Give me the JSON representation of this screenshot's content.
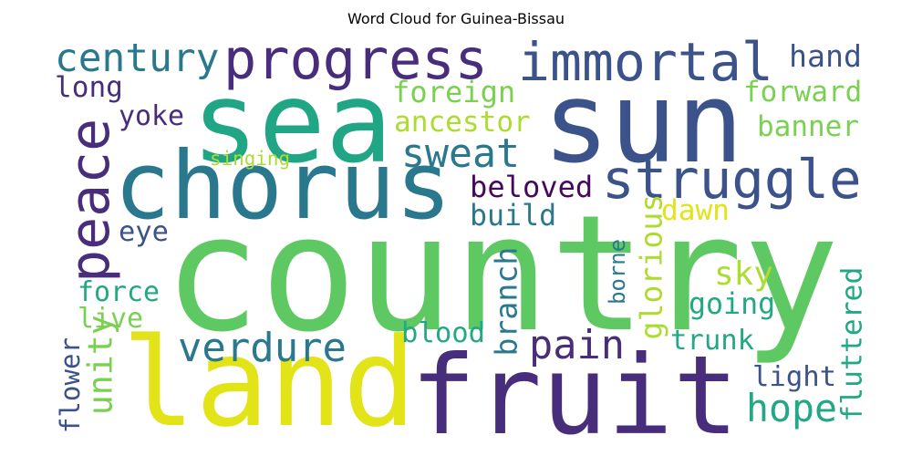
{
  "title": "Word Cloud for Guinea-Bissau",
  "colors": {
    "green": "#5ec962",
    "teal_green": "#21a685",
    "teal": "#2a788e",
    "blue": "#3b528b",
    "purple": "#472d7b",
    "dark_purple": "#46085c",
    "yellow": "#e2e418",
    "lime": "#addc30",
    "light_green": "#7ad151",
    "aqua": "#22a884"
  },
  "words": [
    {
      "text": "country",
      "color": "green"
    },
    {
      "text": "land",
      "color": "yellow"
    },
    {
      "text": "fruit",
      "color": "purple"
    },
    {
      "text": "sea",
      "color": "teal_green"
    },
    {
      "text": "sun",
      "color": "blue"
    },
    {
      "text": "chorus",
      "color": "teal"
    },
    {
      "text": "progress",
      "color": "purple"
    },
    {
      "text": "immortal",
      "color": "blue"
    },
    {
      "text": "struggle",
      "color": "blue"
    },
    {
      "text": "peace",
      "color": "purple"
    },
    {
      "text": "century",
      "color": "teal"
    },
    {
      "text": "hand",
      "color": "blue"
    },
    {
      "text": "long",
      "color": "purple"
    },
    {
      "text": "foreign",
      "color": "light_green"
    },
    {
      "text": "forward",
      "color": "light_green"
    },
    {
      "text": "yoke",
      "color": "purple"
    },
    {
      "text": "ancestor",
      "color": "lime"
    },
    {
      "text": "banner",
      "color": "light_green"
    },
    {
      "text": "sweat",
      "color": "teal"
    },
    {
      "text": "singing",
      "color": "lime"
    },
    {
      "text": "beloved",
      "color": "dark_purple"
    },
    {
      "text": "build",
      "color": "teal"
    },
    {
      "text": "dawn",
      "color": "yellow"
    },
    {
      "text": "eye",
      "color": "blue"
    },
    {
      "text": "glorious",
      "color": "lime"
    },
    {
      "text": "sky",
      "color": "lime"
    },
    {
      "text": "borne",
      "color": "teal"
    },
    {
      "text": "force",
      "color": "aqua"
    },
    {
      "text": "live",
      "color": "light_green"
    },
    {
      "text": "branch",
      "color": "teal"
    },
    {
      "text": "going",
      "color": "aqua"
    },
    {
      "text": "fluttered",
      "color": "aqua"
    },
    {
      "text": "verdure",
      "color": "teal"
    },
    {
      "text": "pain",
      "color": "purple"
    },
    {
      "text": "blood",
      "color": "aqua"
    },
    {
      "text": "trunk",
      "color": "aqua"
    },
    {
      "text": "flower",
      "color": "blue"
    },
    {
      "text": "unity",
      "color": "light_green"
    },
    {
      "text": "light",
      "color": "blue"
    },
    {
      "text": "hope",
      "color": "aqua"
    }
  ]
}
